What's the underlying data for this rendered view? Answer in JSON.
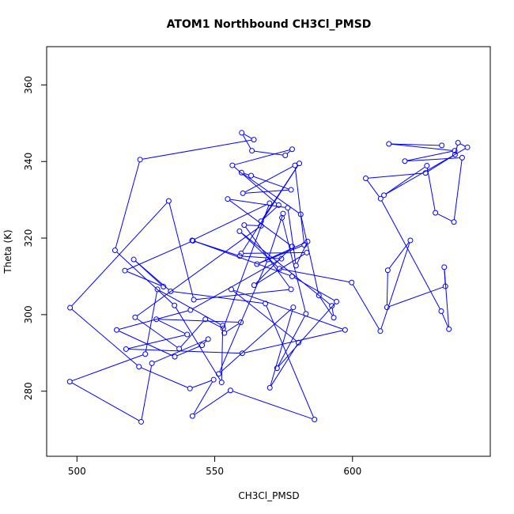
{
  "chart_data": {
    "type": "line",
    "title": "ATOM1 Northbound CH3Cl_PMSD",
    "xlabel": "CH3Cl_PMSD",
    "ylabel": "Theta (K)",
    "xlim": [
      489,
      650
    ],
    "ylim": [
      263,
      370
    ],
    "xticks": [
      500,
      550,
      600
    ],
    "yticks": [
      280,
      300,
      320,
      340,
      360
    ],
    "grid": false,
    "legend": "none",
    "marker": "open-circle",
    "color": "#0000ff",
    "series": [
      {
        "x": [
          553.5,
          559.5,
          528.8,
          540.0,
          517.8,
          560.0,
          597.3,
          556.0,
          580.4,
          570.0,
          578.5,
          551.4,
          569.3,
          574.8,
          574.4,
          583.1,
          572.6,
          594.2,
          578.1,
          541.8,
          569.9,
          553.1,
          546.6,
          537.1,
          521.1,
          566.8,
          560.7,
          577.7,
          542.4,
          533.3,
          497.5,
          522.5,
          541.0,
          549.6,
          541.9,
          555.7,
          586.2,
          568.4,
          534.0,
          520.6,
          531.4,
          517.4,
          542.1,
          559.1,
          574.2,
          541.2,
          514.4,
          535.5,
          545.4,
          547.6,
          527.2,
          523.3,
          497.4,
          524.8,
          529.2,
          552.9,
          552.5,
          535.4,
          513.8,
          522.9,
          564.2,
          559.8,
          563.5,
          575.6,
          578.1,
          556.4,
          573.2,
          566.8,
          580.7,
          559.6,
          583.4,
          564.3,
          578.1,
          554.7,
          576.5,
          579.5,
          583.7,
          565.3,
          582.5,
          579.1,
          560.2,
          577.7,
          563.2,
          559.7,
          581.2,
          587.8,
          593.2,
          592.5,
          559.0,
          573.5,
          599.7,
          610.1,
          621.0,
          612.8,
          612.5,
          633.7,
          633.3,
          635.0,
          632.2,
          610.2,
          604.8,
          626.5,
          637.2,
          638.3,
          641.7,
          611.4,
          627.0,
          630.1,
          636.8,
          639.8,
          619.0,
          637.1,
          613.2,
          632.4
        ],
        "y": [
          295.2,
          298.0,
          298.8,
          294.8,
          291.0,
          289.9,
          296.0,
          306.6,
          292.7,
          280.9,
          301.9,
          284.5,
          314.4,
          326.4,
          325.3,
          300.2,
          286.0,
          303.4,
          310.0,
          319.4,
          329.1,
          296.4,
          298.8,
          291.1,
          299.3,
          323.2,
          323.4,
          306.6,
          303.9,
          329.7,
          301.8,
          286.4,
          280.7,
          283.0,
          273.5,
          280.2,
          272.6,
          302.9,
          306.1,
          314.4,
          307.3,
          311.5,
          319.3,
          315.3,
          314.6,
          301.2,
          296.0,
          289.0,
          292.0,
          293.6,
          287.3,
          272.0,
          282.5,
          289.7,
          306.6,
          297.1,
          282.3,
          302.4,
          316.8,
          340.5,
          345.7,
          347.5,
          342.8,
          341.6,
          343.2,
          339.0,
          328.6,
          324.4,
          339.5,
          316.0,
          316.2,
          307.7,
          317.8,
          330.2,
          327.9,
          312.8,
          319.1,
          313.2,
          318.2,
          339.0,
          331.7,
          332.6,
          336.3,
          337.1,
          326.2,
          305.0,
          299.2,
          302.3,
          321.8,
          312.0,
          308.4,
          295.7,
          319.4,
          311.6,
          301.9,
          307.4,
          312.4,
          296.2,
          300.9,
          330.3,
          335.6,
          337.0,
          341.8,
          344.9,
          343.7,
          331.2,
          338.9,
          326.6,
          324.2,
          341.0,
          340.1,
          342.8,
          344.6,
          344.2
        ]
      }
    ]
  }
}
